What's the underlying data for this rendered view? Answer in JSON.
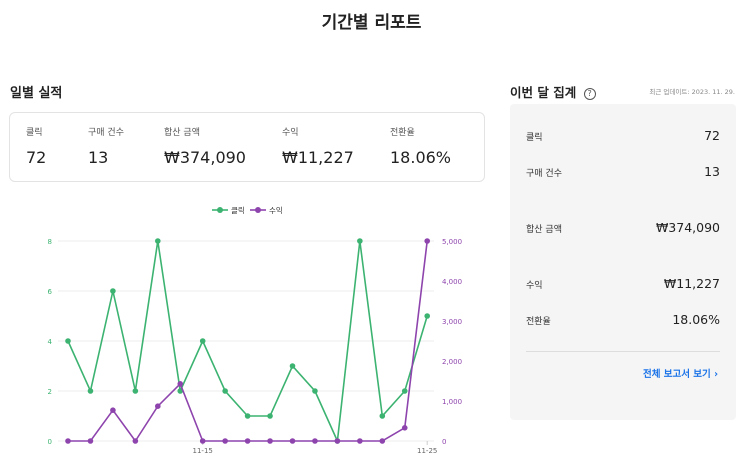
{
  "page": {
    "title": "기간별 리포트"
  },
  "daily": {
    "title": "일별 실적",
    "stats": [
      {
        "label": "클릭",
        "value": "72"
      },
      {
        "label": "구매 건수",
        "value": "13"
      },
      {
        "label": "합산 금액",
        "value": "₩374,090"
      },
      {
        "label": "수익",
        "value": "₩11,227"
      },
      {
        "label": "전환율",
        "value": "18.06%"
      }
    ]
  },
  "summary": {
    "title": "이번 달 집계",
    "help_icon": "?",
    "updated": "최근 업데이트: 2023. 11. 29.",
    "rows": [
      {
        "label": "클릭",
        "value": "72"
      },
      {
        "label": "구매 건수",
        "value": "13"
      },
      {
        "label": "합산 금액",
        "value": "₩374,090"
      },
      {
        "label": "수익",
        "value": "₩11,227"
      },
      {
        "label": "전환율",
        "value": "18.06%"
      }
    ],
    "link": "전체 보고서 보기 ›"
  },
  "colors": {
    "clicks": "#3cb371",
    "revenue": "#8e44ad",
    "link": "#1a73e8"
  },
  "chart_data": {
    "type": "line",
    "legend": "top-center",
    "x_tick_labels": [
      "11-15",
      "11-25"
    ],
    "x_tick_index": [
      6,
      16
    ],
    "y_left": {
      "ticks": [
        "0",
        "2",
        "4",
        "6",
        "8"
      ],
      "ylim": [
        0,
        8
      ]
    },
    "y_right": {
      "ticks": [
        "0",
        "1,000",
        "2,000",
        "3,000",
        "4,000",
        "5,000"
      ],
      "ylim": [
        0,
        5000
      ]
    },
    "series": [
      {
        "name": "클릭",
        "axis": "left",
        "color": "#3cb371",
        "values": [
          4,
          2,
          6,
          2,
          8,
          2,
          4,
          2,
          1,
          1,
          3,
          2,
          0,
          8,
          1,
          2,
          5
        ]
      },
      {
        "name": "수익",
        "axis": "right",
        "color": "#8e44ad",
        "values": [
          0,
          0,
          770,
          0,
          870,
          1430,
          0,
          0,
          0,
          0,
          0,
          0,
          0,
          0,
          0,
          330,
          5000
        ]
      }
    ]
  }
}
